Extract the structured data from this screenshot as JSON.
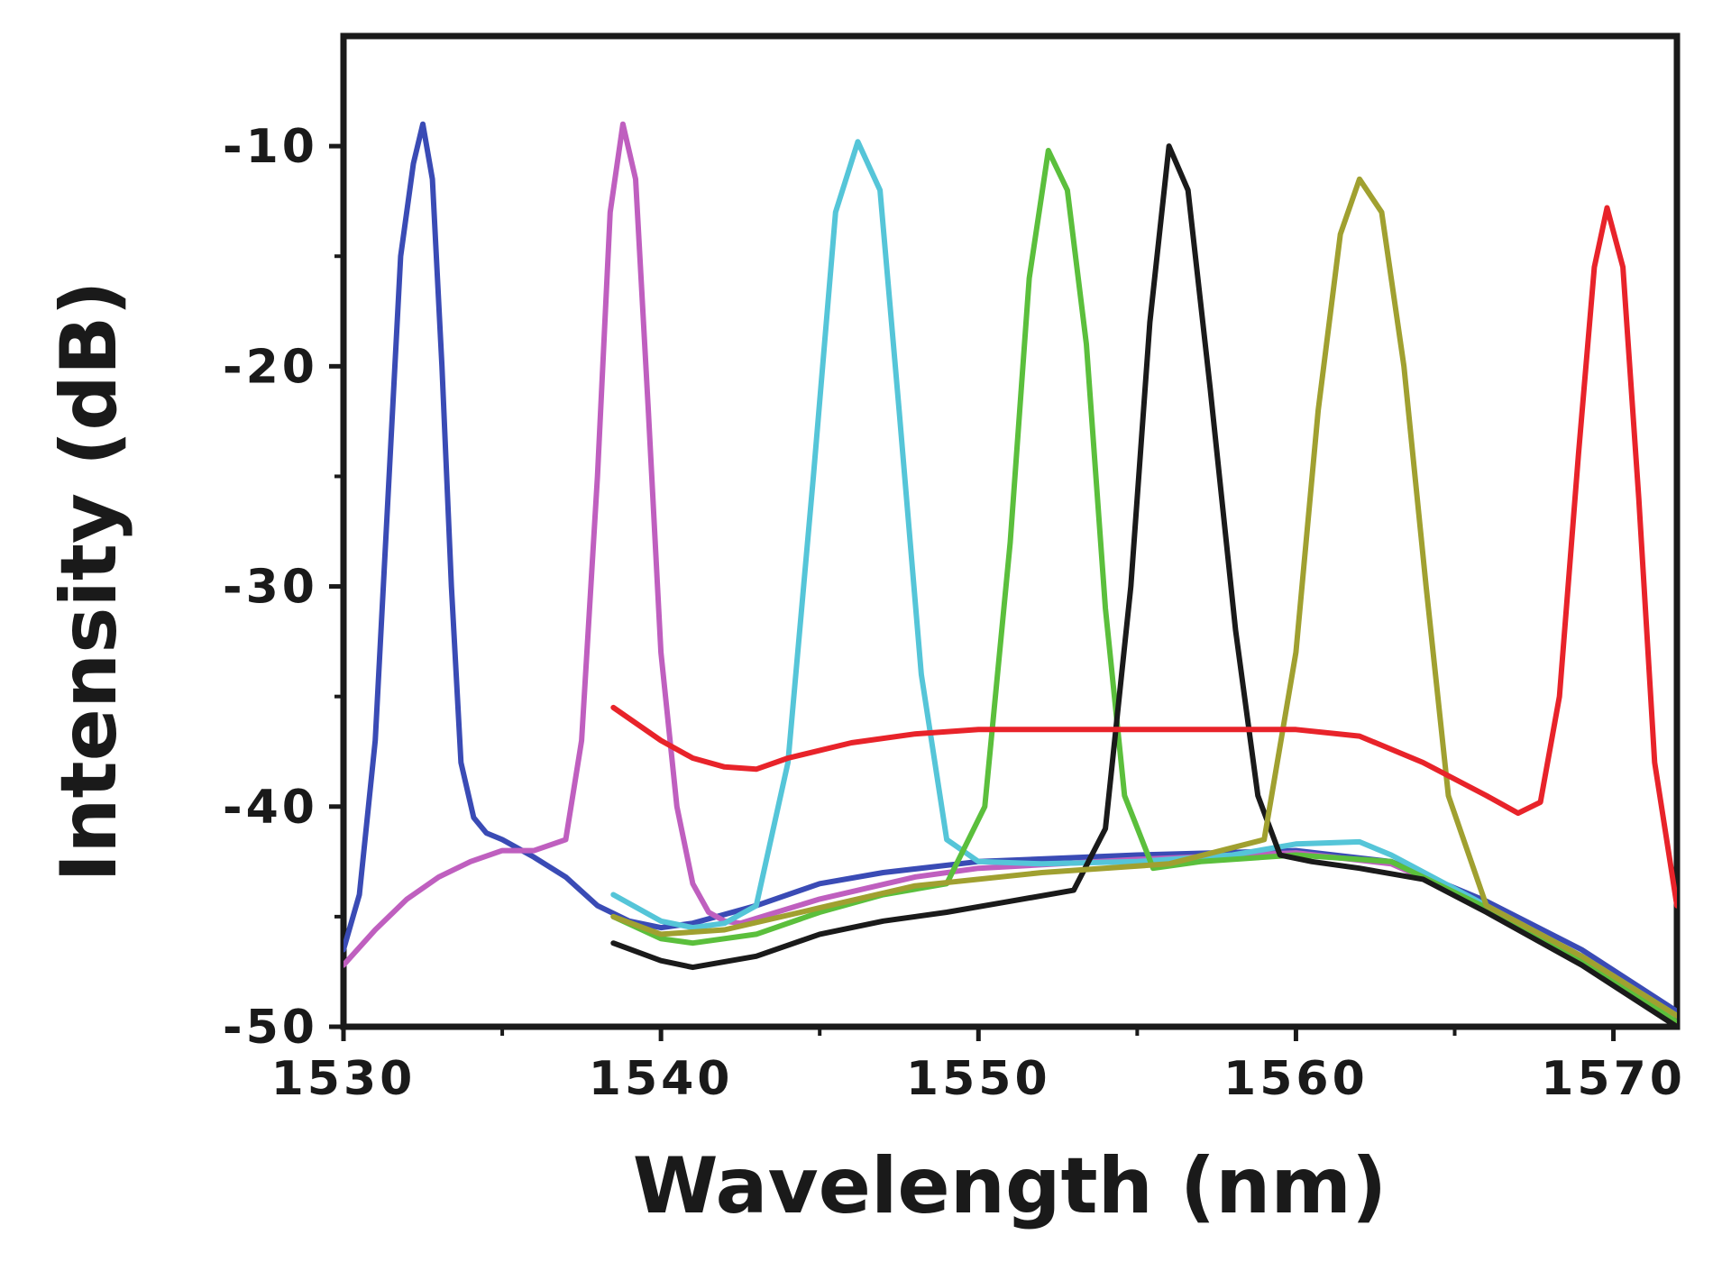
{
  "chart_data": {
    "type": "line",
    "title": "",
    "xlabel": "Wavelength (nm)",
    "ylabel": "Intensity (dB)",
    "xlim": [
      1530,
      1572
    ],
    "ylim": [
      -50,
      -5
    ],
    "xticks": [
      1530,
      1540,
      1550,
      1560,
      1570
    ],
    "yticks": [
      -10,
      -20,
      -30,
      -40,
      -50
    ],
    "grid": false,
    "legend": "none",
    "series": [
      {
        "color": "#3a4bb5",
        "x": [
          1530,
          1530.5,
          1531,
          1531.4,
          1531.8,
          1532.2,
          1532.5,
          1532.8,
          1533.1,
          1533.4,
          1533.7,
          1534.1,
          1534.5,
          1535,
          1536,
          1537,
          1538,
          1539,
          1540,
          1541,
          1543,
          1545,
          1547,
          1550,
          1555,
          1560,
          1563,
          1566,
          1569,
          1572
        ],
        "y": [
          -46.5,
          -44,
          -37,
          -26,
          -15,
          -10.8,
          -9,
          -11.5,
          -20,
          -30,
          -38,
          -40.5,
          -41.2,
          -41.5,
          -42.3,
          -43.2,
          -44.5,
          -45.2,
          -45.5,
          -45.3,
          -44.5,
          -43.5,
          -43,
          -42.5,
          -42.2,
          -42,
          -42.5,
          -44.3,
          -46.5,
          -49.3
        ]
      },
      {
        "color": "#bf5fbf",
        "x": [
          1530,
          1531,
          1532,
          1533,
          1534,
          1535,
          1536,
          1537,
          1537.5,
          1538,
          1538.4,
          1538.8,
          1539.2,
          1539.6,
          1540,
          1540.5,
          1541,
          1541.5,
          1542,
          1542.5,
          1545,
          1548,
          1550,
          1555,
          1560,
          1563,
          1566,
          1569,
          1572
        ],
        "y": [
          -47.2,
          -45.6,
          -44.2,
          -43.2,
          -42.5,
          -42,
          -42,
          -41.5,
          -37,
          -25,
          -13,
          -9,
          -11.5,
          -22,
          -33,
          -40,
          -43.5,
          -44.8,
          -45.2,
          -45.3,
          -44.2,
          -43.2,
          -42.8,
          -42.4,
          -42.1,
          -42.6,
          -44.5,
          -46.8,
          -49.5
        ]
      },
      {
        "color": "#55c5d8",
        "x": [
          1538.5,
          1540,
          1541,
          1542,
          1543,
          1544,
          1544.8,
          1545.5,
          1546.2,
          1546.9,
          1547.5,
          1548.2,
          1549,
          1550,
          1552,
          1555,
          1558,
          1560,
          1562,
          1563,
          1566,
          1569,
          1572
        ],
        "y": [
          -44,
          -45.2,
          -45.5,
          -45.3,
          -44.5,
          -38,
          -25,
          -13,
          -9.8,
          -12,
          -22,
          -34,
          -41.5,
          -42.5,
          -42.6,
          -42.5,
          -42.2,
          -41.7,
          -41.6,
          -42.2,
          -44.5,
          -46.8,
          -49.5
        ]
      },
      {
        "color": "#5bbf3c",
        "x": [
          1538.5,
          1540,
          1541,
          1543,
          1545,
          1547,
          1549,
          1550.2,
          1551,
          1551.6,
          1552.2,
          1552.8,
          1553.4,
          1554,
          1554.6,
          1555.5,
          1557,
          1560,
          1563,
          1566,
          1569,
          1572
        ],
        "y": [
          -45,
          -46,
          -46.2,
          -45.8,
          -44.8,
          -44,
          -43.5,
          -40,
          -28,
          -16,
          -10.2,
          -12,
          -19,
          -31,
          -39.5,
          -42.8,
          -42.5,
          -42.2,
          -42.5,
          -44.6,
          -47,
          -49.8
        ]
      },
      {
        "color": "#1a1a1a",
        "x": [
          1538.5,
          1540,
          1541,
          1543,
          1545,
          1547,
          1549,
          1551,
          1553,
          1554,
          1554.8,
          1555.4,
          1556,
          1556.6,
          1557.3,
          1558.1,
          1558.8,
          1559.5,
          1560.5,
          1562,
          1564,
          1566,
          1569,
          1572
        ],
        "y": [
          -46.2,
          -47,
          -47.3,
          -46.8,
          -45.8,
          -45.2,
          -44.8,
          -44.3,
          -43.8,
          -41,
          -30,
          -18,
          -10,
          -12,
          -21,
          -32,
          -39.5,
          -42.2,
          -42.5,
          -42.8,
          -43.3,
          -44.8,
          -47.2,
          -50
        ]
      },
      {
        "color": "#a0a030",
        "x": [
          1538.5,
          1540,
          1542,
          1545,
          1548,
          1552,
          1556,
          1559,
          1560,
          1560.7,
          1561.4,
          1562,
          1562.7,
          1563.4,
          1564.1,
          1564.8,
          1566,
          1569,
          1572
        ],
        "y": [
          -45,
          -45.8,
          -45.6,
          -44.6,
          -43.6,
          -43,
          -42.6,
          -41.5,
          -33,
          -22,
          -14,
          -11.5,
          -13,
          -20,
          -30,
          -39.5,
          -44.5,
          -46.8,
          -49.5
        ]
      },
      {
        "color": "#e8232a",
        "x": [
          1538.5,
          1540,
          1541,
          1542,
          1543,
          1544,
          1546,
          1548,
          1550,
          1555,
          1560,
          1562,
          1564,
          1566,
          1567,
          1567.7,
          1568.3,
          1568.9,
          1569.4,
          1569.8,
          1570.3,
          1570.8,
          1571.3,
          1572
        ],
        "y": [
          -35.5,
          -37,
          -37.8,
          -38.2,
          -38.3,
          -37.8,
          -37.1,
          -36.7,
          -36.5,
          -36.5,
          -36.5,
          -36.8,
          -38,
          -39.5,
          -40.3,
          -39.8,
          -35,
          -24,
          -15.5,
          -12.8,
          -15.5,
          -26,
          -38,
          -44.5
        ]
      }
    ]
  }
}
